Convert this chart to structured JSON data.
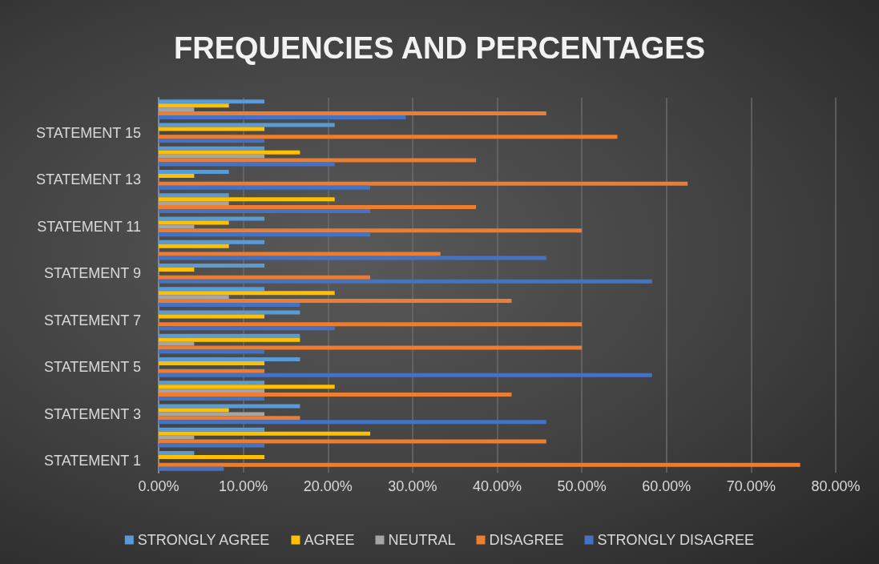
{
  "chart_data": {
    "type": "bar",
    "orientation": "horizontal",
    "title": "FREQUENCIES AND PERCENTAGES",
    "categories": [
      null,
      "STATEMENT 15",
      null,
      "STATEMENT 13",
      null,
      "STATEMENT 11",
      null,
      "STATEMENT 9",
      null,
      "STATEMENT 7",
      null,
      "STATEMENT 5",
      null,
      "STATEMENT 3",
      null,
      "STATEMENT 1"
    ],
    "series": [
      {
        "name": "STRONGLY AGREE",
        "color": "#5b9bd5",
        "values": [
          12.5,
          20.8,
          12.5,
          8.3,
          8.3,
          12.5,
          12.5,
          12.5,
          12.5,
          16.7,
          16.7,
          16.7,
          12.5,
          16.7,
          12.5,
          4.2
        ]
      },
      {
        "name": "AGREE",
        "color": "#ffc000",
        "values": [
          8.3,
          12.5,
          16.7,
          4.2,
          20.8,
          8.3,
          8.3,
          4.2,
          20.8,
          12.5,
          16.7,
          12.5,
          20.8,
          8.3,
          25,
          12.5
        ]
      },
      {
        "name": "NEUTRAL",
        "color": "#a5a5a5",
        "values": [
          4.2,
          0,
          12.5,
          0,
          8.3,
          4.2,
          0,
          0,
          8.3,
          0,
          4.2,
          0,
          12.5,
          12.5,
          4.2,
          0
        ]
      },
      {
        "name": "DISAGREE",
        "color": "#ed7d31",
        "values": [
          45.8,
          54.2,
          37.5,
          62.5,
          37.5,
          50,
          33.3,
          25,
          41.7,
          50,
          50,
          12.5,
          41.7,
          16.7,
          45.8,
          75.8
        ]
      },
      {
        "name": "STRONGLY DISAGREE",
        "color": "#4472c4",
        "values": [
          29.2,
          12.5,
          20.8,
          25,
          25,
          25,
          45.8,
          58.3,
          16.7,
          20.8,
          12.5,
          58.3,
          12.5,
          45.8,
          12.5,
          7.7
        ]
      }
    ],
    "xlim": [
      0,
      80
    ],
    "xticks": [
      {
        "value": 0,
        "label": "0.00%"
      },
      {
        "value": 10,
        "label": "10.00%"
      },
      {
        "value": 20,
        "label": "20.00%"
      },
      {
        "value": 30,
        "label": "30.00%"
      },
      {
        "value": 40,
        "label": "40.00%"
      },
      {
        "value": 50,
        "label": "50.00%"
      },
      {
        "value": 60,
        "label": "60.00%"
      },
      {
        "value": 70,
        "label": "70.00%"
      },
      {
        "value": 80,
        "label": "80.00%"
      }
    ],
    "grid": "x",
    "legend": "bottom"
  }
}
